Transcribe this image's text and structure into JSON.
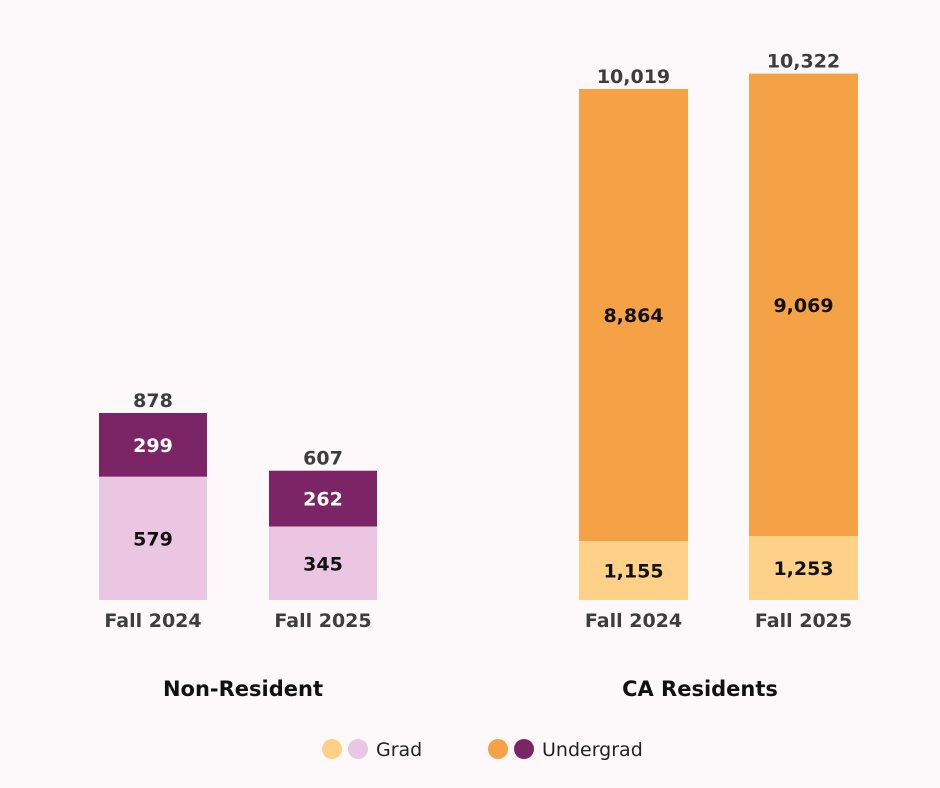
{
  "chart_data": [
    {
      "type": "bar",
      "stacked": true,
      "title": "Non-Resident",
      "categories": [
        "Fall 2024",
        "Fall 2025"
      ],
      "series": [
        {
          "name": "Grad",
          "values": [
            579,
            345
          ],
          "color": "#eac6e3"
        },
        {
          "name": "Undergrad",
          "values": [
            299,
            262
          ],
          "color": "#7b2466"
        }
      ],
      "totals": [
        "878",
        "607"
      ],
      "segment_labels": [
        [
          "579",
          "299"
        ],
        [
          "345",
          "262"
        ]
      ],
      "grid": false
    },
    {
      "type": "bar",
      "stacked": true,
      "title": "CA Residents",
      "categories": [
        "Fall 2024",
        "Fall 2025"
      ],
      "series": [
        {
          "name": "Grad",
          "values": [
            1155,
            1253
          ],
          "color": "#fdd187"
        },
        {
          "name": "Undergrad",
          "values": [
            8864,
            9069
          ],
          "color": "#f4a245"
        }
      ],
      "totals": [
        "10,019",
        "10,322"
      ],
      "segment_labels": [
        [
          "1,155",
          "8,864"
        ],
        [
          "1,253",
          "9,069"
        ]
      ],
      "grid": false
    }
  ],
  "legend": {
    "placement": "bottom",
    "items": [
      {
        "label": "Grad",
        "colors": [
          "#fdd187",
          "#eac6e3"
        ]
      },
      {
        "label": "Undergrad",
        "colors": [
          "#f4a245",
          "#7b2466"
        ]
      }
    ]
  }
}
